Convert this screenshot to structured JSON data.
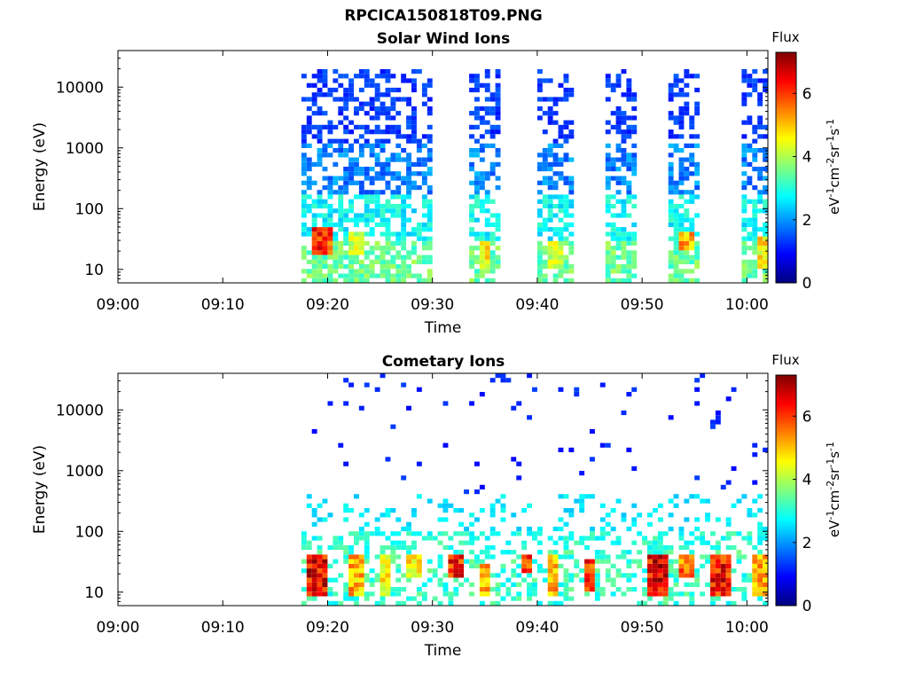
{
  "figure_title": "RPCICA150818T09.PNG",
  "colormap": [
    "#00007f",
    "#0000ff",
    "#007fff",
    "#00ffff",
    "#7fff7f",
    "#ffff00",
    "#ff7f00",
    "#ff0000",
    "#7f0000"
  ],
  "chart_data": [
    {
      "type": "heatmap",
      "title": "Solar Wind Ions",
      "xlabel": "Time",
      "ylabel": "Energy (eV)",
      "x_ticks": [
        "09:00",
        "09:10",
        "09:20",
        "09:30",
        "09:40",
        "09:50",
        "10:00"
      ],
      "xlim": [
        "09:00",
        "10:02"
      ],
      "y_scale": "log",
      "y_ticks": [
        "10",
        "100",
        "1000",
        "10000"
      ],
      "ylim": [
        6,
        40000
      ],
      "colorbar": {
        "label": "Flux",
        "units": "eV-1cm-2sr-1s-1",
        "ticks": [
          "0",
          "2",
          "4",
          "6"
        ],
        "range": [
          0,
          7.3
        ]
      },
      "data_intervals": [
        [
          "09:17:30",
          "09:30:00"
        ],
        [
          "09:33:30",
          "09:36:30"
        ],
        [
          "09:40:00",
          "09:43:30"
        ],
        [
          "09:46:30",
          "09:49:30"
        ],
        [
          "09:52:30",
          "09:55:30"
        ],
        [
          "09:59:30",
          "10:02:00"
        ]
      ],
      "high_flux_regions": [
        {
          "time": [
            "09:18:30",
            "09:20:30"
          ],
          "energy_eV": [
            15,
            45
          ],
          "flux": 6.5
        },
        {
          "time": [
            "09:22:00",
            "09:23:30"
          ],
          "energy_eV": [
            15,
            35
          ],
          "flux": 4.5
        },
        {
          "time": [
            "09:34:30",
            "09:35:30"
          ],
          "energy_eV": [
            10,
            25
          ],
          "flux": 5.0
        },
        {
          "time": [
            "09:41:00",
            "09:42:30"
          ],
          "energy_eV": [
            10,
            25
          ],
          "flux": 4.5
        },
        {
          "time": [
            "09:53:30",
            "09:55:00"
          ],
          "energy_eV": [
            20,
            40
          ],
          "flux": 5.5
        },
        {
          "time": [
            "10:01:00",
            "10:01:50"
          ],
          "energy_eV": [
            10,
            30
          ],
          "flux": 5.0
        }
      ]
    },
    {
      "type": "heatmap",
      "title": "Cometary Ions",
      "xlabel": "Time",
      "ylabel": "Energy (eV)",
      "x_ticks": [
        "09:00",
        "09:10",
        "09:20",
        "09:30",
        "09:40",
        "09:50",
        "10:00"
      ],
      "xlim": [
        "09:00",
        "10:02"
      ],
      "y_scale": "log",
      "y_ticks": [
        "10",
        "100",
        "1000",
        "10000"
      ],
      "ylim": [
        6,
        40000
      ],
      "colorbar": {
        "label": "Flux",
        "units": "eV-1cm-2sr-1s-1",
        "ticks": [
          "0",
          "2",
          "4",
          "6"
        ],
        "range": [
          0,
          7.3
        ]
      },
      "data_intervals": [
        [
          "09:17:30",
          "10:02:00"
        ]
      ],
      "high_flux_regions": [
        {
          "time": [
            "09:18:00",
            "09:20:00"
          ],
          "energy_eV": [
            8,
            40
          ],
          "flux": 7.0
        },
        {
          "time": [
            "09:22:00",
            "09:23:30"
          ],
          "energy_eV": [
            8,
            40
          ],
          "flux": 5.5
        },
        {
          "time": [
            "09:25:00",
            "09:26:00"
          ],
          "energy_eV": [
            8,
            35
          ],
          "flux": 5.0
        },
        {
          "time": [
            "09:27:30",
            "09:29:00"
          ],
          "energy_eV": [
            15,
            40
          ],
          "flux": 5.0
        },
        {
          "time": [
            "09:31:30",
            "09:33:00"
          ],
          "energy_eV": [
            15,
            40
          ],
          "flux": 6.8
        },
        {
          "time": [
            "09:34:30",
            "09:35:30"
          ],
          "energy_eV": [
            8,
            25
          ],
          "flux": 5.5
        },
        {
          "time": [
            "09:38:30",
            "09:39:30"
          ],
          "energy_eV": [
            20,
            40
          ],
          "flux": 6.5
        },
        {
          "time": [
            "09:41:00",
            "09:42:00"
          ],
          "energy_eV": [
            8,
            35
          ],
          "flux": 5.5
        },
        {
          "time": [
            "09:44:30",
            "09:45:30"
          ],
          "energy_eV": [
            10,
            30
          ],
          "flux": 6.5
        },
        {
          "time": [
            "09:50:30",
            "09:52:30"
          ],
          "energy_eV": [
            8,
            40
          ],
          "flux": 7.0
        },
        {
          "time": [
            "09:53:30",
            "09:55:00"
          ],
          "energy_eV": [
            15,
            40
          ],
          "flux": 6.0
        },
        {
          "time": [
            "09:56:30",
            "09:58:30"
          ],
          "energy_eV": [
            8,
            40
          ],
          "flux": 6.8
        },
        {
          "time": [
            "10:00:30",
            "10:01:50"
          ],
          "energy_eV": [
            8,
            35
          ],
          "flux": 5.5
        }
      ]
    }
  ]
}
